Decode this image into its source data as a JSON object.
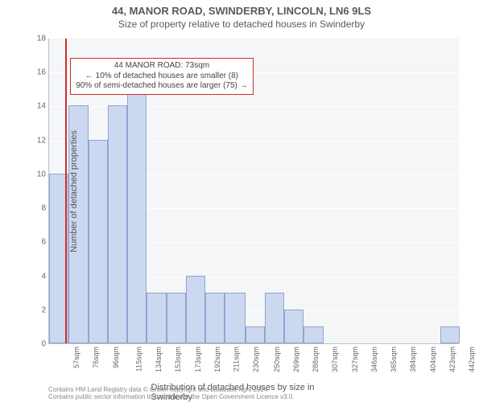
{
  "title": {
    "main": "44, MANOR ROAD, SWINDERBY, LINCOLN, LN6 9LS",
    "sub": "Size of property relative to detached houses in Swinderby",
    "fontsize_main": 13,
    "fontsize_sub": 12
  },
  "chart": {
    "type": "histogram",
    "background_color": "#f5f6f8",
    "grid_color": "#ffffff",
    "axis_color": "#b8c0c8",
    "bar_fill": "#ccd8ef",
    "bar_border": "#8fa4d0",
    "bar_width_ratio": 1.0,
    "xlabel": "Distribution of detached houses by size in Swinderby",
    "ylabel": "Number of detached properties",
    "label_fontsize": 11,
    "tick_fontsize": 10,
    "ylim": [
      0,
      18
    ],
    "ytick_step": 2,
    "x_tick_labels": [
      "57sqm",
      "76sqm",
      "96sqm",
      "115sqm",
      "134sqm",
      "153sqm",
      "173sqm",
      "192sqm",
      "211sqm",
      "230sqm",
      "250sqm",
      "269sqm",
      "288sqm",
      "307sqm",
      "327sqm",
      "346sqm",
      "365sqm",
      "384sqm",
      "404sqm",
      "423sqm",
      "442sqm"
    ],
    "bin_edges": [
      57,
      76,
      96,
      115,
      134,
      153,
      173,
      192,
      211,
      230,
      250,
      269,
      288,
      307,
      327,
      346,
      365,
      384,
      404,
      423,
      442,
      461
    ],
    "values": [
      10,
      14,
      12,
      14,
      15,
      3,
      3,
      4,
      3,
      3,
      1,
      3,
      2,
      1,
      0,
      0,
      0,
      0,
      0,
      0,
      1
    ],
    "marker": {
      "x_value": 73,
      "color": "#d12c2c"
    },
    "annotation": {
      "border_color": "#d12c2c",
      "background": "#ffffff",
      "fontsize": 10,
      "line1": "44 MANOR ROAD: 73sqm",
      "line2": "← 10% of detached houses are smaller (8)",
      "line3": "90% of semi-detached houses are larger (75) →",
      "y_anchor": 16
    }
  },
  "footer": {
    "line1": "Contains HM Land Registry data © Crown copyright and database right 2024.",
    "line2": "Contains public sector information licensed under the Open Government Licence v3.0.",
    "fontsize": 8,
    "color": "#888888"
  }
}
